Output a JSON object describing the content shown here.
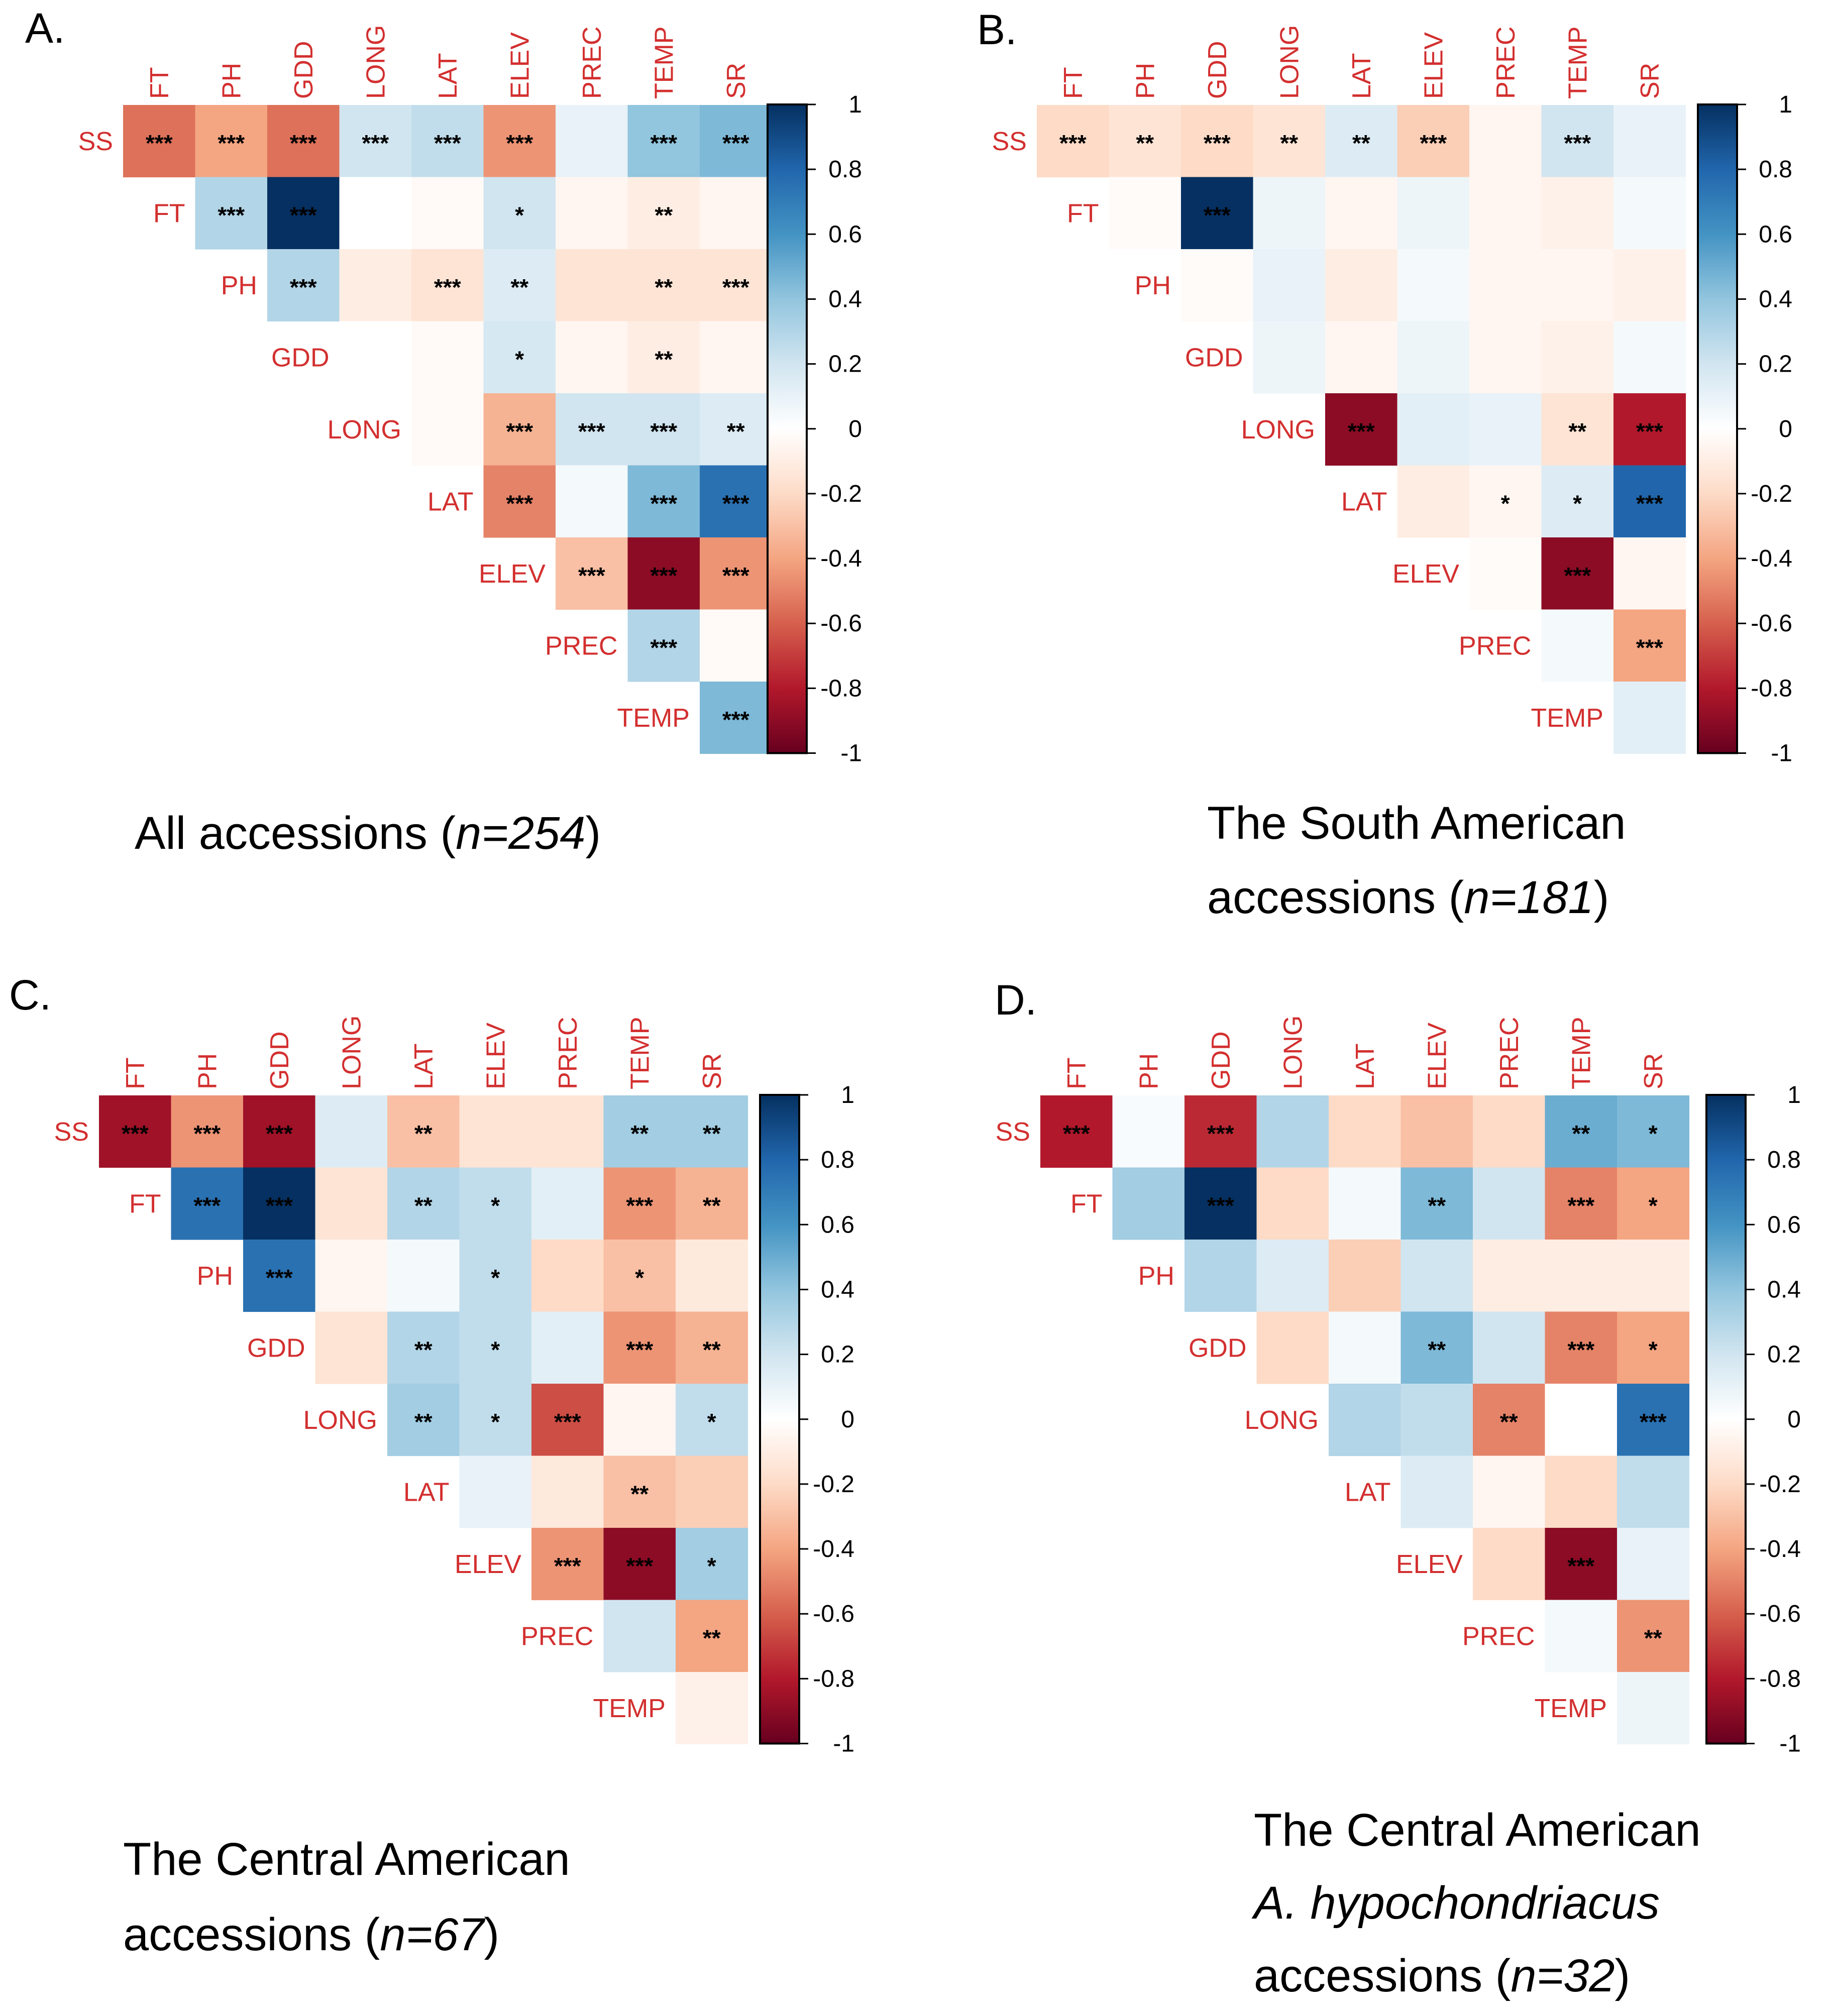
{
  "colors": {
    "label": "#d32f2f",
    "text": "#000000",
    "scale": [
      "#67001f",
      "#b2182b",
      "#d6604d",
      "#f4a582",
      "#fddbc7",
      "#ffffff",
      "#d1e5f0",
      "#92c5de",
      "#4393c3",
      "#2166ac",
      "#053061"
    ]
  },
  "colorbar": {
    "ticks": [
      "1",
      "0.8",
      "0.6",
      "0.4",
      "0.2",
      "0",
      "-0.2",
      "-0.4",
      "-0.6",
      "-0.8",
      "-1"
    ]
  },
  "chart_data": [
    {
      "type": "heatmap",
      "panel": "A.",
      "title": "All accessions (n=254)",
      "caption": [
        [
          {
            "t": "All accessions ("
          },
          {
            "t": "n=254",
            "i": true
          },
          {
            "t": ")"
          }
        ]
      ],
      "variables": [
        "SS",
        "FT",
        "PH",
        "GDD",
        "LONG",
        "LAT",
        "ELEV",
        "PREC",
        "TEMP",
        "SR"
      ],
      "rows": [
        {
          "label": "SS",
          "values": [
            -0.55,
            -0.4,
            -0.55,
            0.2,
            0.25,
            -0.45,
            0.1,
            0.4,
            0.45
          ],
          "sig": [
            "***",
            "***",
            "***",
            "***",
            "***",
            "***",
            "",
            "***",
            "***"
          ]
        },
        {
          "label": "FT",
          "values": [
            0.3,
            1.0,
            0.0,
            -0.03,
            0.2,
            -0.05,
            -0.1,
            -0.05
          ],
          "sig": [
            "***",
            "***",
            "",
            "",
            "*",
            "",
            "**",
            ""
          ]
        },
        {
          "label": "PH",
          "values": [
            0.3,
            -0.1,
            -0.15,
            0.15,
            -0.15,
            -0.15,
            -0.15
          ],
          "sig": [
            "***",
            "",
            "***",
            "**",
            "",
            "**",
            "***"
          ]
        },
        {
          "label": "GDD",
          "values": [
            0.0,
            -0.03,
            0.18,
            -0.05,
            -0.1,
            -0.05
          ],
          "sig": [
            "",
            "",
            "*",
            "",
            "**",
            ""
          ]
        },
        {
          "label": "LONG",
          "values": [
            -0.03,
            -0.35,
            0.2,
            0.2,
            0.15
          ],
          "sig": [
            "",
            "***",
            "***",
            "***",
            "**"
          ]
        },
        {
          "label": "LAT",
          "values": [
            -0.5,
            0.05,
            0.45,
            0.75
          ],
          "sig": [
            "***",
            "",
            "***",
            "***"
          ]
        },
        {
          "label": "ELEV",
          "values": [
            -0.3,
            -0.9,
            -0.45
          ],
          "sig": [
            "***",
            "***",
            "***"
          ]
        },
        {
          "label": "PREC",
          "values": [
            0.3,
            -0.03
          ],
          "sig": [
            "***",
            ""
          ]
        },
        {
          "label": "TEMP",
          "values": [
            0.45
          ],
          "sig": [
            "***"
          ]
        }
      ],
      "range": [
        -1,
        1
      ]
    },
    {
      "type": "heatmap",
      "panel": "B.",
      "title": "The South American accessions (n=181)",
      "caption": [
        [
          {
            "t": "The South American"
          }
        ],
        [
          {
            "t": "accessions ("
          },
          {
            "t": "n=181",
            "i": true
          },
          {
            "t": ")"
          }
        ]
      ],
      "variables": [
        "SS",
        "FT",
        "PH",
        "GDD",
        "LONG",
        "LAT",
        "ELEV",
        "PREC",
        "TEMP",
        "SR"
      ],
      "rows": [
        {
          "label": "SS",
          "values": [
            -0.2,
            -0.15,
            -0.2,
            -0.15,
            0.15,
            -0.25,
            -0.05,
            0.2,
            0.1
          ],
          "sig": [
            "***",
            "**",
            "***",
            "**",
            "**",
            "***",
            "",
            "***",
            ""
          ]
        },
        {
          "label": "FT",
          "values": [
            -0.02,
            1.0,
            0.08,
            -0.05,
            0.08,
            -0.05,
            -0.08,
            0.05
          ],
          "sig": [
            "",
            "***",
            "",
            "",
            "",
            "",
            "",
            ""
          ]
        },
        {
          "label": "PH",
          "values": [
            -0.02,
            0.1,
            -0.1,
            0.05,
            -0.05,
            -0.05,
            -0.08
          ],
          "sig": [
            "",
            "",
            "",
            "",
            "",
            "",
            ""
          ]
        },
        {
          "label": "GDD",
          "values": [
            0.08,
            -0.05,
            0.08,
            -0.05,
            -0.08,
            0.05
          ],
          "sig": [
            "",
            "",
            "",
            "",
            "",
            ""
          ]
        },
        {
          "label": "LONG",
          "values": [
            -0.9,
            0.12,
            0.1,
            -0.15,
            -0.8
          ],
          "sig": [
            "***",
            "",
            "",
            "**",
            "***"
          ]
        },
        {
          "label": "LAT",
          "values": [
            -0.1,
            -0.05,
            0.15,
            0.8
          ],
          "sig": [
            "",
            "*",
            "*",
            "***"
          ]
        },
        {
          "label": "ELEV",
          "values": [
            -0.02,
            -0.9,
            -0.05
          ],
          "sig": [
            "",
            "***",
            ""
          ]
        },
        {
          "label": "PREC",
          "values": [
            0.05,
            -0.4
          ],
          "sig": [
            "",
            "***"
          ]
        },
        {
          "label": "TEMP",
          "values": [
            0.12
          ],
          "sig": [
            ""
          ]
        }
      ],
      "range": [
        -1,
        1
      ]
    },
    {
      "type": "heatmap",
      "panel": "C.",
      "title": "The Central American accessions (n=67)",
      "caption": [
        [
          {
            "t": "The Central American"
          }
        ],
        [
          {
            "t": "accessions ("
          },
          {
            "t": "n=67",
            "i": true
          },
          {
            "t": ")"
          }
        ]
      ],
      "variables": [
        "SS",
        "FT",
        "PH",
        "GDD",
        "LONG",
        "LAT",
        "ELEV",
        "PREC",
        "TEMP",
        "SR"
      ],
      "rows": [
        {
          "label": "SS",
          "values": [
            -0.85,
            -0.45,
            -0.85,
            0.15,
            -0.3,
            -0.15,
            -0.15,
            0.35,
            0.35
          ],
          "sig": [
            "***",
            "***",
            "***",
            "",
            "**",
            "",
            "",
            "**",
            "**"
          ]
        },
        {
          "label": "FT",
          "values": [
            0.75,
            1.0,
            -0.15,
            0.3,
            0.25,
            0.12,
            -0.45,
            -0.35
          ],
          "sig": [
            "***",
            "***",
            "",
            "**",
            "*",
            "",
            "***",
            "**"
          ]
        },
        {
          "label": "PH",
          "values": [
            0.75,
            -0.05,
            0.05,
            0.25,
            -0.2,
            -0.3,
            -0.12
          ],
          "sig": [
            "***",
            "",
            "",
            "*",
            "",
            "*",
            ""
          ]
        },
        {
          "label": "GDD",
          "values": [
            -0.15,
            0.3,
            0.25,
            0.12,
            -0.45,
            -0.35
          ],
          "sig": [
            "",
            "**",
            "*",
            "",
            "***",
            "**"
          ]
        },
        {
          "label": "LONG",
          "values": [
            0.35,
            0.25,
            -0.65,
            -0.05,
            0.25
          ],
          "sig": [
            "**",
            "*",
            "***",
            "",
            "*"
          ]
        },
        {
          "label": "LAT",
          "values": [
            0.1,
            -0.12,
            -0.3,
            -0.25
          ],
          "sig": [
            "",
            "",
            "**",
            ""
          ]
        },
        {
          "label": "ELEV",
          "values": [
            -0.45,
            -0.9,
            0.35
          ],
          "sig": [
            "***",
            "***",
            "*"
          ]
        },
        {
          "label": "PREC",
          "values": [
            0.2,
            -0.4
          ],
          "sig": [
            "",
            "**"
          ]
        },
        {
          "label": "TEMP",
          "values": [
            -0.08
          ],
          "sig": [
            ""
          ]
        }
      ],
      "range": [
        -1,
        1
      ]
    },
    {
      "type": "heatmap",
      "panel": "D.",
      "title": "The Central American A. hypochondriacus accessions (n=32)",
      "caption": [
        [
          {
            "t": "The Central American"
          }
        ],
        [
          {
            "t": "A. hypochondriacus",
            "i": true
          }
        ],
        [
          {
            "t": "accessions ("
          },
          {
            "t": "n=32",
            "i": true
          },
          {
            "t": ")"
          }
        ]
      ],
      "variables": [
        "SS",
        "FT",
        "PH",
        "GDD",
        "LONG",
        "LAT",
        "ELEV",
        "PREC",
        "TEMP",
        "SR"
      ],
      "rows": [
        {
          "label": "SS",
          "values": [
            -0.8,
            0.03,
            -0.75,
            0.3,
            -0.2,
            -0.3,
            -0.2,
            0.5,
            0.45
          ],
          "sig": [
            "***",
            "",
            "***",
            "",
            "",
            "",
            "",
            "**",
            "*"
          ]
        },
        {
          "label": "FT",
          "values": [
            0.35,
            1.0,
            -0.2,
            0.05,
            0.45,
            0.2,
            -0.5,
            -0.4
          ],
          "sig": [
            "",
            "***",
            "",
            "",
            "**",
            "",
            "***",
            "*"
          ]
        },
        {
          "label": "PH",
          "values": [
            0.3,
            0.15,
            -0.25,
            0.2,
            -0.1,
            -0.1,
            -0.1
          ],
          "sig": [
            "",
            "",
            "",
            "",
            "",
            "",
            ""
          ]
        },
        {
          "label": "GDD",
          "values": [
            -0.2,
            0.05,
            0.45,
            0.2,
            -0.5,
            -0.4
          ],
          "sig": [
            "",
            "",
            "**",
            "",
            "***",
            "*"
          ]
        },
        {
          "label": "LONG",
          "values": [
            0.3,
            0.25,
            -0.5,
            0.0,
            0.75
          ],
          "sig": [
            "",
            "",
            "**",
            "",
            "***"
          ]
        },
        {
          "label": "LAT",
          "values": [
            0.15,
            -0.05,
            -0.2,
            0.25
          ],
          "sig": [
            "",
            "",
            "",
            ""
          ]
        },
        {
          "label": "ELEV",
          "values": [
            -0.2,
            -0.9,
            0.1
          ],
          "sig": [
            "",
            "***",
            ""
          ]
        },
        {
          "label": "PREC",
          "values": [
            0.05,
            -0.45
          ],
          "sig": [
            "",
            "**"
          ]
        },
        {
          "label": "TEMP",
          "values": [
            0.08
          ],
          "sig": [
            ""
          ]
        }
      ],
      "range": [
        -1,
        1
      ]
    }
  ]
}
